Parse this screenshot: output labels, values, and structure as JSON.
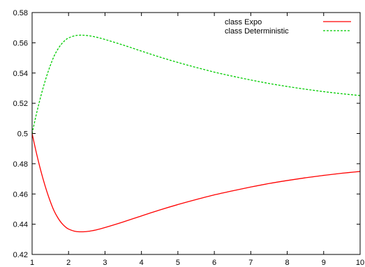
{
  "chart_data": {
    "type": "line",
    "title": "",
    "xlabel": "",
    "ylabel": "",
    "xlim": [
      1,
      10
    ],
    "ylim": [
      0.42,
      0.58
    ],
    "x_ticks": [
      "1",
      "2",
      "3",
      "4",
      "5",
      "6",
      "7",
      "8",
      "9",
      "10"
    ],
    "y_ticks": [
      "0.42",
      "0.44",
      "0.46",
      "0.48",
      "0.5",
      "0.52",
      "0.54",
      "0.56",
      "0.58"
    ],
    "grid": false,
    "legend_position": "top-right",
    "series": [
      {
        "name": "class Expo",
        "color": "#ff0000",
        "dash": "solid",
        "x": [
          1,
          1.1,
          1.2,
          1.3,
          1.4,
          1.5,
          1.6,
          1.7,
          1.8,
          1.9,
          2.0,
          2.2,
          2.4,
          2.6,
          2.8,
          3.0,
          3.5,
          4.0,
          4.5,
          5.0,
          5.5,
          6.0,
          6.5,
          7.0,
          7.5,
          8.0,
          8.5,
          9.0,
          9.5,
          10.0
        ],
        "y": [
          0.5,
          0.489,
          0.479,
          0.47,
          0.462,
          0.455,
          0.449,
          0.4445,
          0.441,
          0.4385,
          0.4368,
          0.4352,
          0.435,
          0.4355,
          0.4365,
          0.4378,
          0.4415,
          0.4455,
          0.4494,
          0.453,
          0.4563,
          0.4594,
          0.4621,
          0.4646,
          0.4669,
          0.4689,
          0.4707,
          0.4723,
          0.4737,
          0.4749
        ]
      },
      {
        "name": "class Deterministic",
        "color": "#00cc00",
        "dash": "dashed",
        "x": [
          1,
          1.1,
          1.2,
          1.3,
          1.4,
          1.5,
          1.6,
          1.7,
          1.8,
          1.9,
          2.0,
          2.2,
          2.4,
          2.6,
          2.8,
          3.0,
          3.5,
          4.0,
          4.5,
          5.0,
          5.5,
          6.0,
          6.5,
          7.0,
          7.5,
          8.0,
          8.5,
          9.0,
          9.5,
          10.0
        ],
        "y": [
          0.5,
          0.511,
          0.521,
          0.53,
          0.538,
          0.545,
          0.551,
          0.5555,
          0.559,
          0.5615,
          0.5632,
          0.5648,
          0.565,
          0.5645,
          0.5635,
          0.5622,
          0.5585,
          0.5545,
          0.5506,
          0.547,
          0.5437,
          0.5406,
          0.5379,
          0.5354,
          0.5331,
          0.5311,
          0.5293,
          0.5277,
          0.5263,
          0.5251
        ]
      }
    ]
  }
}
